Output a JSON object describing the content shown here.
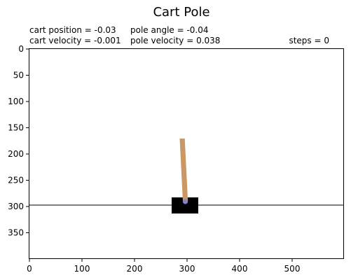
{
  "title": "Cart Pole",
  "info": {
    "cart_position": "cart position = -0.03",
    "pole_angle": "pole angle = -0.04",
    "cart_velocity": "cart velocity = -0.001",
    "pole_velocity": "pole velocity = 0.038",
    "steps": "steps = 0"
  },
  "state": {
    "cart_position": -0.03,
    "cart_velocity": -0.001,
    "pole_angle": -0.04,
    "pole_velocity": 0.038,
    "steps": 0
  },
  "axes": {
    "xlim": [
      0,
      600
    ],
    "ylim": [
      400,
      0
    ],
    "x_ticks": [
      "0",
      "100",
      "200",
      "300",
      "400",
      "500"
    ],
    "y_ticks": [
      "0",
      "50",
      "100",
      "150",
      "200",
      "250",
      "300",
      "350"
    ]
  },
  "colors": {
    "cart": "#000000",
    "pole": "#ca9865",
    "axle": "#8184cb",
    "track": "#000000"
  }
}
